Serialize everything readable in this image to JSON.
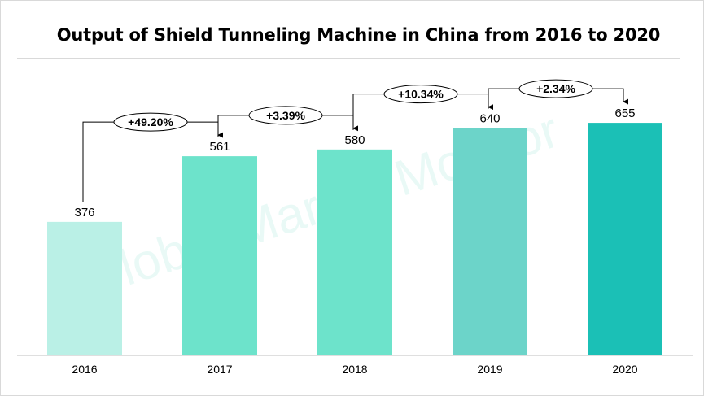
{
  "chart_data": {
    "type": "bar",
    "title": "Output of Shield Tunneling Machine in China from 2016 to 2020",
    "xlabel": "",
    "ylabel": "",
    "ylim": [
      0,
      700
    ],
    "grid": false,
    "legend": "none",
    "categories": [
      "2016",
      "2017",
      "2018",
      "2019",
      "2020"
    ],
    "values": [
      376,
      561,
      580,
      640,
      655
    ],
    "value_labels": [
      "376",
      "561",
      "580",
      "640",
      "655"
    ],
    "bar_colors": [
      "#baf0e6",
      "#6de3cb",
      "#6de3cb",
      "#6cd4c9",
      "#1bc0b6"
    ],
    "growth_annotations": [
      {
        "from": "2016",
        "to": "2017",
        "label": "+49.20%"
      },
      {
        "from": "2017",
        "to": "2018",
        "label": "+3.39%"
      },
      {
        "from": "2018",
        "to": "2019",
        "label": "+10.34%"
      },
      {
        "from": "2019",
        "to": "2020",
        "label": "+2.34%"
      }
    ]
  },
  "watermark": "Global Market Monitor"
}
